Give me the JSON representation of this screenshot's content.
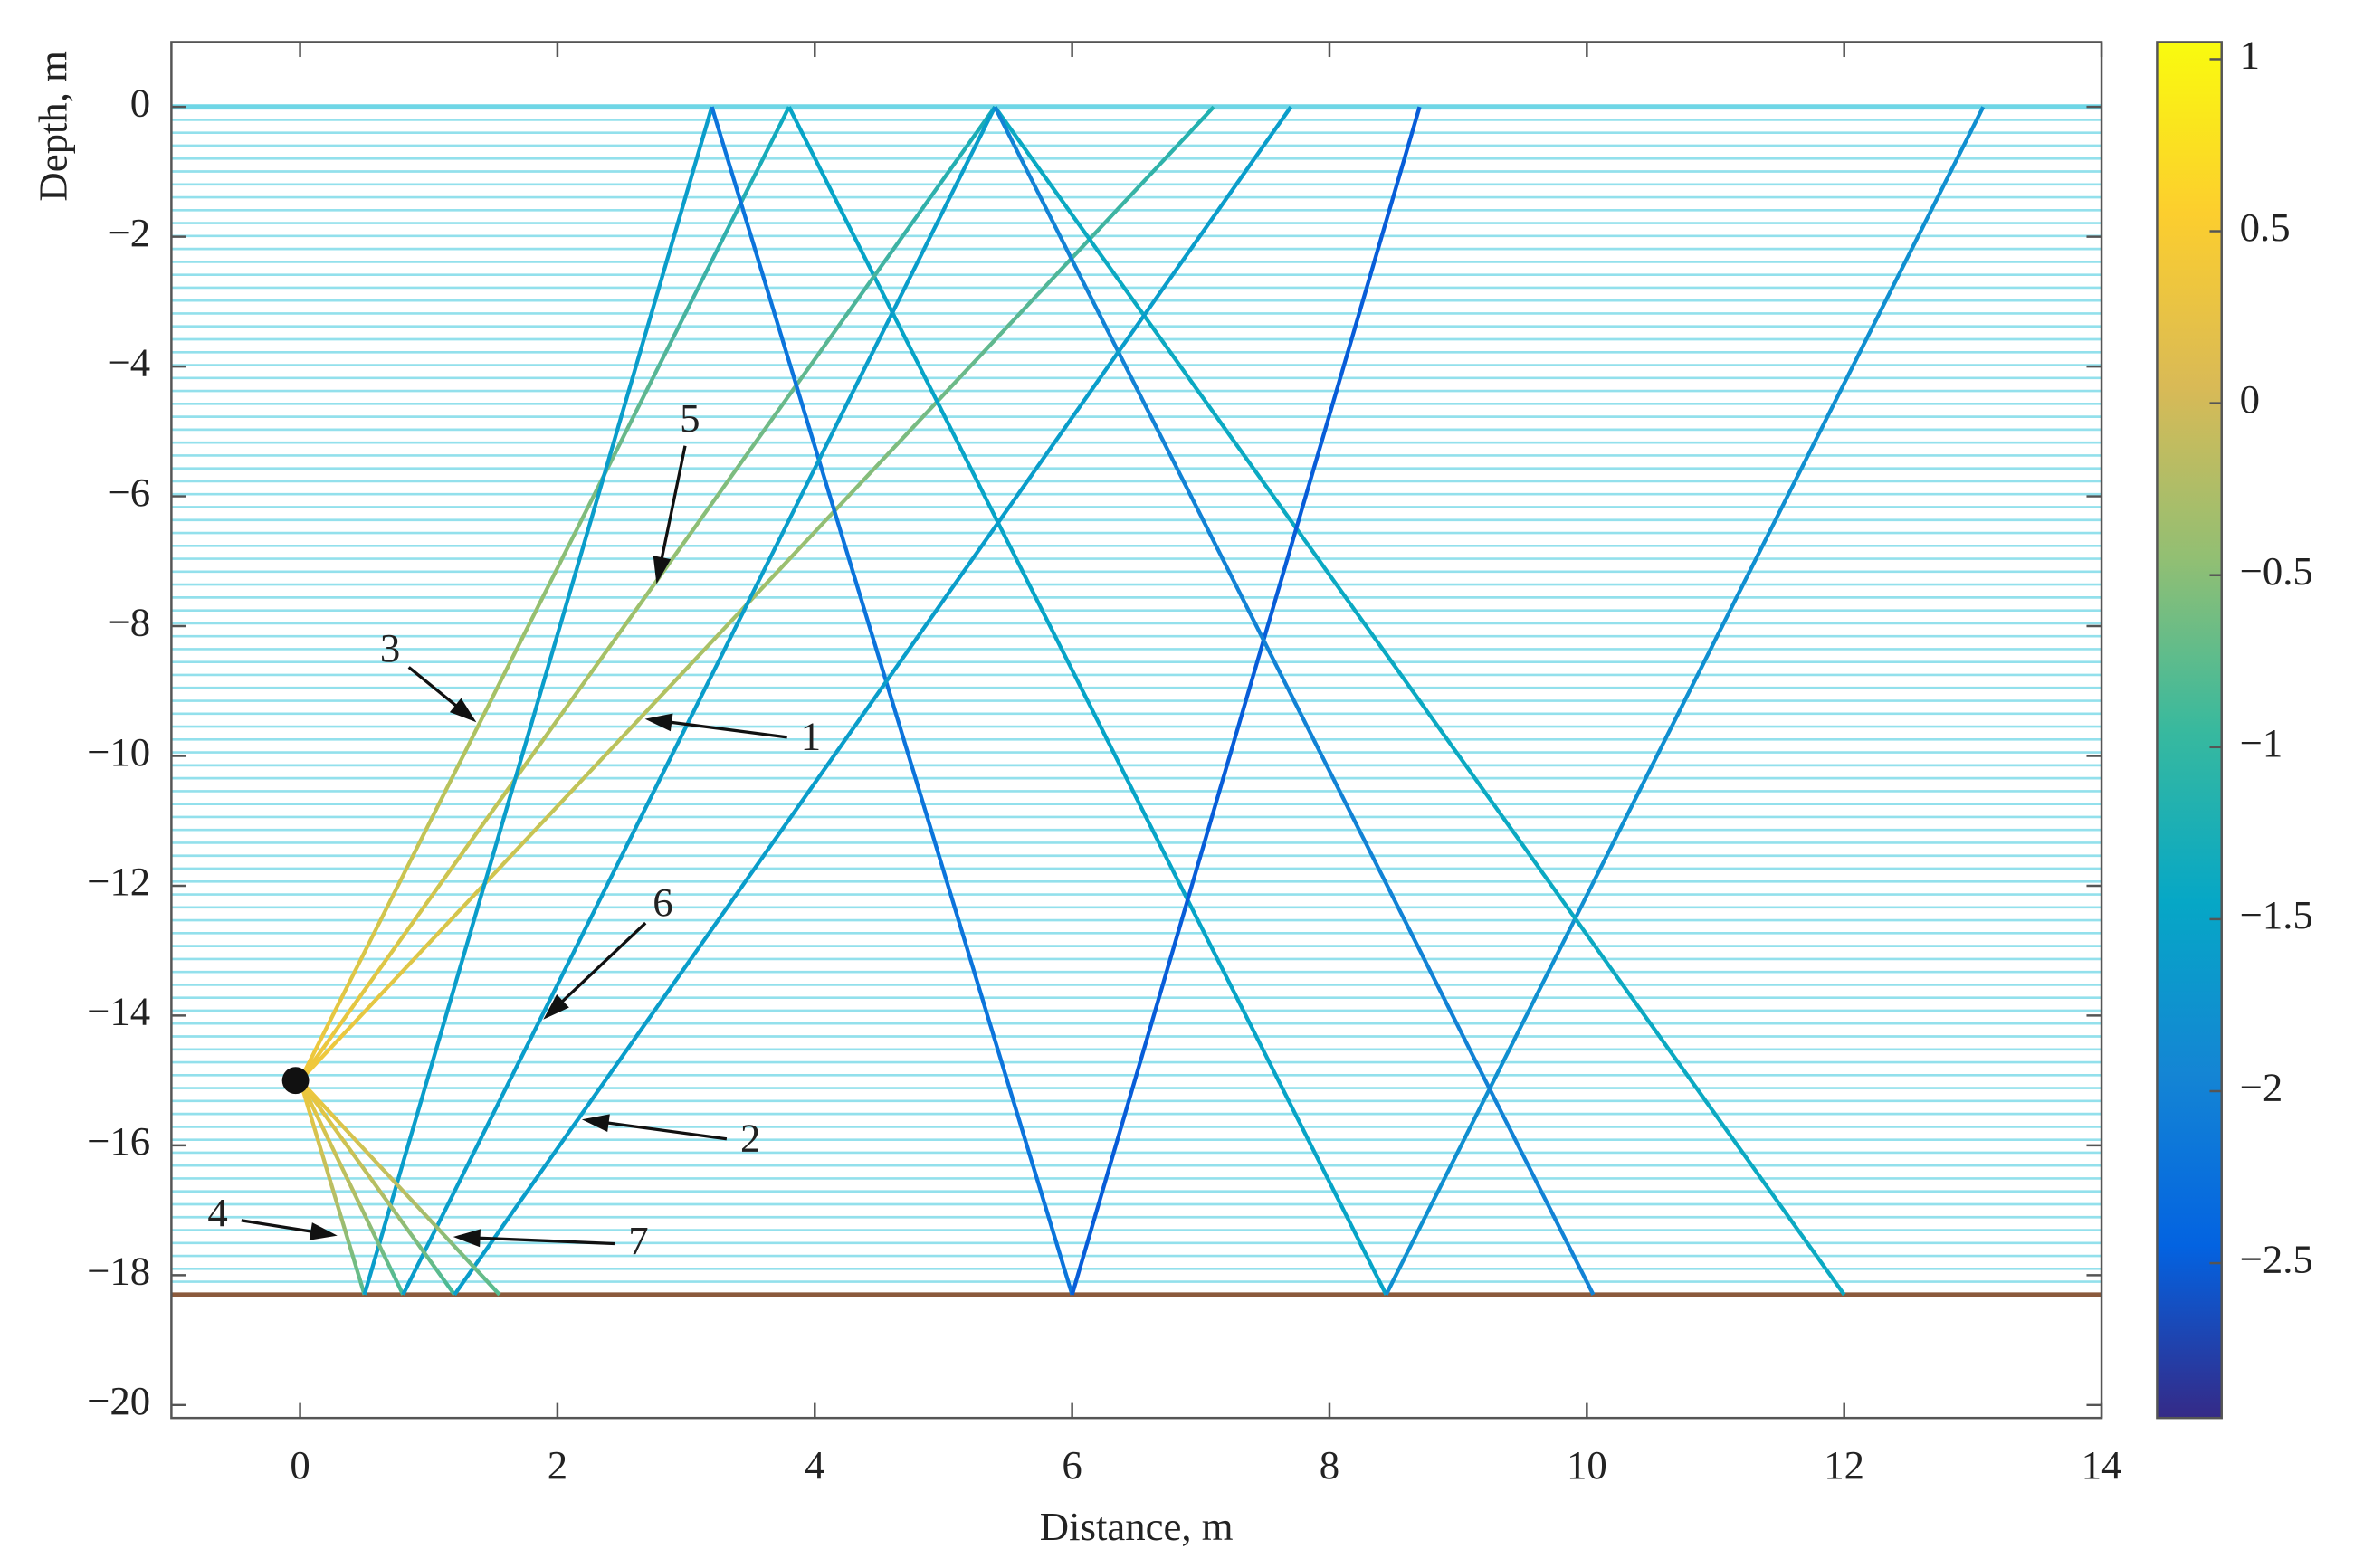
{
  "chart_data": {
    "type": "rays",
    "xlabel": "Distance, m",
    "ylabel": "Depth, m",
    "xlim": [
      -1,
      14
    ],
    "ylim": [
      -20.2,
      1
    ],
    "xticks": [
      0,
      2,
      4,
      6,
      8,
      10,
      12,
      14
    ],
    "yticks": [
      0,
      {
        "value": -2,
        "label": "−2"
      },
      {
        "value": -4,
        "label": "−4"
      },
      {
        "value": -6,
        "label": "−6"
      },
      {
        "value": -8,
        "label": "−8"
      },
      {
        "value": -10,
        "label": "−10"
      },
      {
        "value": -12,
        "label": "−12"
      },
      {
        "value": -14,
        "label": "−14"
      },
      {
        "value": -16,
        "label": "−16"
      },
      {
        "value": -18,
        "label": "−18"
      },
      {
        "value": -20,
        "label": "−20"
      }
    ],
    "surface": 0,
    "bottom": -18.3,
    "layer_count": 92,
    "layer_color": "#6fd6e6",
    "bottom_color": "#8b5a3c",
    "source": [
      0,
      -15
    ],
    "source_value": 0.4,
    "clim": [
      -2.95,
      1.05
    ],
    "cticks": [
      1,
      0.5,
      0,
      {
        "value": -0.5,
        "label": "−0.5"
      },
      {
        "value": -1,
        "label": "−1"
      },
      {
        "value": -1.5,
        "label": "−1.5"
      },
      {
        "value": -2,
        "label": "−2"
      },
      {
        "value": -2.5,
        "label": "−2.5"
      }
    ],
    "colormap": [
      "#352a87",
      "#0363e1",
      "#1485d4",
      "#06a7c6",
      "#38b99e",
      "#92bf73",
      "#d9ba56",
      "#fcce2e",
      "#f9fb0e"
    ],
    "rays": [
      {
        "x": [
          0,
          7.1
        ],
        "y": [
          -15,
          0
        ],
        "c": [
          -1.2
        ]
      },
      {
        "x": [
          0,
          3.8,
          8.44,
          13.08
        ],
        "y": [
          -15,
          0,
          -18.3,
          0
        ],
        "c": [
          -1.4,
          -1.5,
          -1.8
        ]
      },
      {
        "x": [
          0,
          5.4,
          12
        ],
        "y": [
          -15,
          0,
          -18.3
        ],
        "c": [
          -1.3,
          -1.4
        ]
      },
      {
        "x": [
          0,
          0.5,
          3.2,
          6,
          8.7
        ],
        "y": [
          -15,
          -18.3,
          0,
          -18.3,
          0
        ],
        "c": [
          -0.8,
          -1.6,
          -2.2,
          -2.5
        ]
      },
      {
        "x": [
          0,
          0.8,
          5.4,
          10.05
        ],
        "y": [
          -15,
          -18.3,
          0,
          -18.3
        ],
        "c": [
          -0.9,
          -1.6,
          -2.0
        ]
      },
      {
        "x": [
          0,
          1.2,
          7.7
        ],
        "y": [
          -15,
          -18.3,
          0
        ],
        "c": [
          -0.9,
          -1.6
        ]
      },
      {
        "x": [
          0,
          1.55
        ],
        "y": [
          -15,
          -18.3
        ],
        "c": [
          -0.8
        ]
      }
    ],
    "annotations": [
      {
        "text": "5",
        "xytext": [
          3.03,
          -4.86
        ],
        "xy": [
          2.77,
          -7.35
        ]
      },
      {
        "text": "3",
        "xytext": [
          0.7,
          -8.4
        ],
        "xy": [
          1.37,
          -9.48
        ]
      },
      {
        "text": "1",
        "xytext": [
          3.97,
          -9.76
        ],
        "xy": [
          2.68,
          -9.43
        ]
      },
      {
        "text": "6",
        "xytext": [
          2.82,
          -12.32
        ],
        "xy": [
          1.89,
          -14.06
        ]
      },
      {
        "text": "2",
        "xytext": [
          3.5,
          -15.95
        ],
        "xy": [
          2.19,
          -15.6
        ]
      },
      {
        "text": "4",
        "xytext": [
          -0.64,
          -17.1
        ],
        "xy": [
          0.29,
          -17.39
        ]
      },
      {
        "text": "7",
        "xytext": [
          2.63,
          -17.53
        ],
        "xy": [
          1.19,
          -17.41
        ]
      }
    ]
  }
}
